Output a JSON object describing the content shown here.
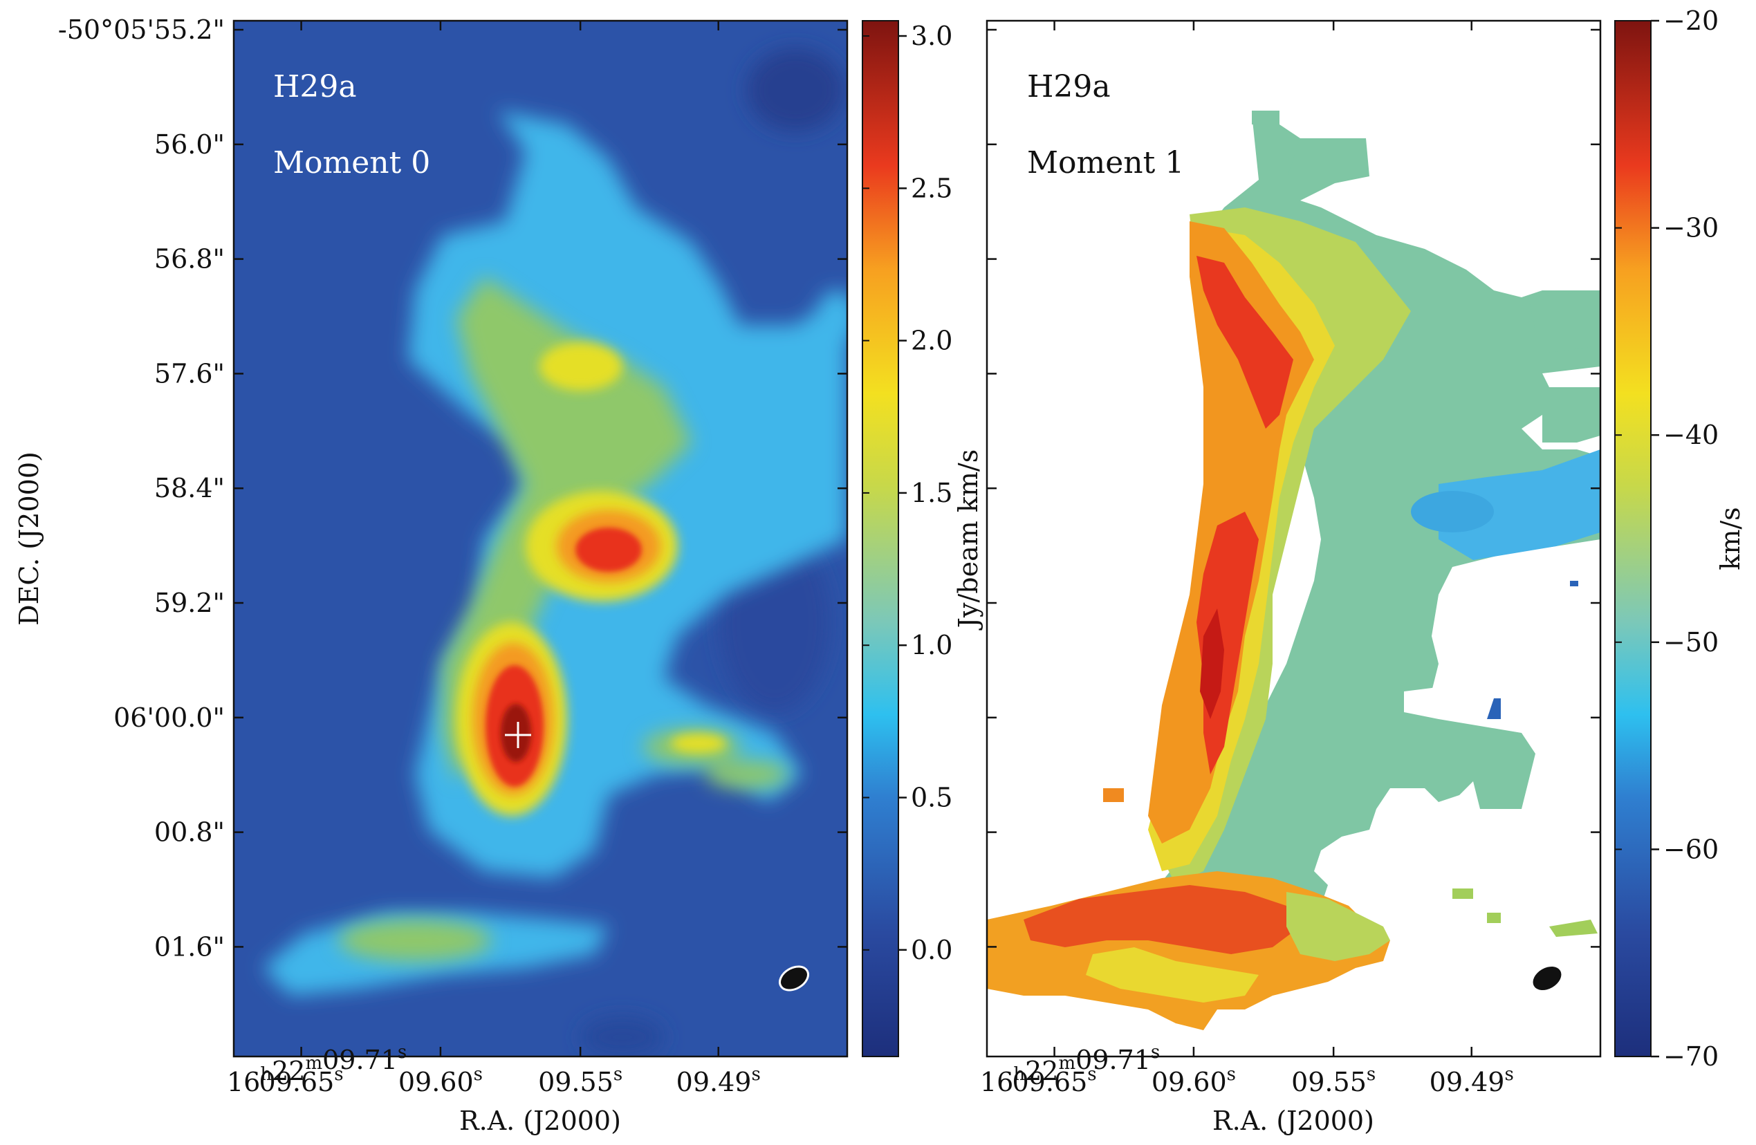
{
  "chart_data": [
    {
      "type": "heatmap",
      "panel_labels": [
        "H29a",
        "Moment 0"
      ],
      "xlabel": "R.A. (J2000)",
      "ylabel": "DEC. (J2000)",
      "x_tick_labels": [
        {
          "base": "16",
          "h": "h",
          "mid": "22",
          "m": "m",
          "rest": "09.71",
          "s": "s"
        },
        {
          "rest": "09.65",
          "s": "s"
        },
        {
          "rest": "09.60",
          "s": "s"
        },
        {
          "rest": "09.55",
          "s": "s"
        },
        {
          "rest": "09.49",
          "s": "s"
        }
      ],
      "y_tick_labels": [
        "-50°05'55.2\"",
        "56.0\"",
        "56.8\"",
        "57.6\"",
        "58.4\"",
        "59.2\"",
        "06'00.0\"",
        "00.8\"",
        "01.6\""
      ],
      "colorbar": {
        "label": "Jy/beam km/s",
        "range": [
          -0.35,
          3.05
        ],
        "tick_labels": [
          "0.0",
          "0.5",
          "1.0",
          "1.5",
          "2.0",
          "2.5",
          "3.0"
        ],
        "tick_values": [
          0.0,
          0.5,
          1.0,
          1.5,
          2.0,
          2.5,
          3.0
        ],
        "colormap": "jet"
      },
      "background_color": "#2c53a8",
      "marker": "white-cross-at-peak",
      "beam": "white-outlined-black-ellipse"
    },
    {
      "type": "heatmap",
      "panel_labels": [
        "H29a",
        "Moment 1"
      ],
      "xlabel": "R.A. (J2000)",
      "x_tick_labels": [
        {
          "base": "16",
          "h": "h",
          "mid": "22",
          "m": "m",
          "rest": "09.71",
          "s": "s"
        },
        {
          "rest": "09.65",
          "s": "s"
        },
        {
          "rest": "09.60",
          "s": "s"
        },
        {
          "rest": "09.55",
          "s": "s"
        },
        {
          "rest": "09.49",
          "s": "s"
        }
      ],
      "colorbar": {
        "label": "km/s",
        "range": [
          -70,
          -20
        ],
        "tick_labels": [
          "−20",
          "−30",
          "−40",
          "−50",
          "−60",
          "−70"
        ],
        "tick_values": [
          -20,
          -30,
          -40,
          -50,
          -60,
          -70
        ],
        "colormap": "jet"
      },
      "background_color": "#ffffff",
      "beam": "black-ellipse"
    }
  ]
}
